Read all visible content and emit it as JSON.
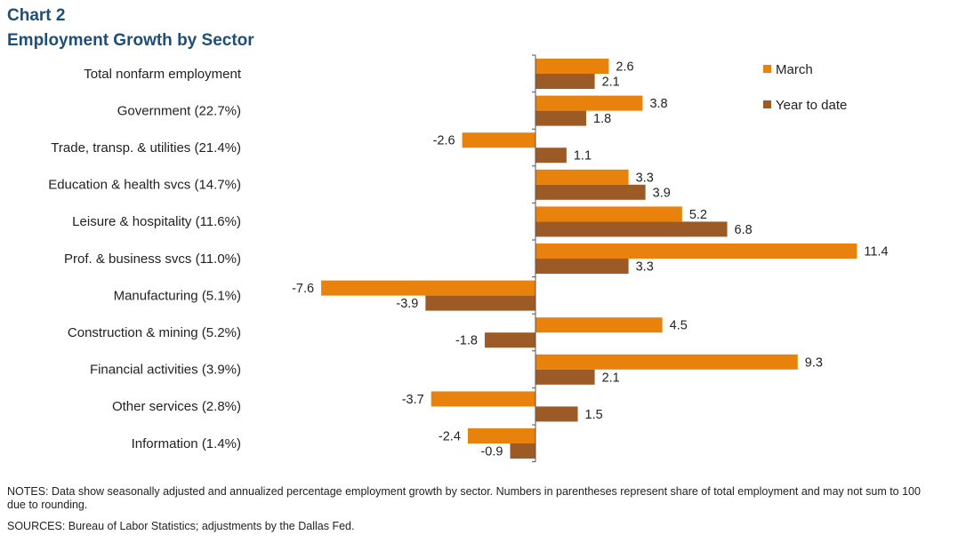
{
  "title": "Chart 2",
  "subtitle": "Employment  Growth by Sector",
  "notes": "NOTES:  Data show seasonally adjusted and annualized percentage employment  growth by sector. Numbers in parentheses represent share of total employment and may not sum to 100 due to rounding.",
  "sources": "SOURCES:  Bureau of Labor Statistics; adjustments by the Dallas Fed.",
  "colors": {
    "march": "#e8820c",
    "ytd": "#9c5a27"
  },
  "chart_data": {
    "type": "bar",
    "orientation": "horizontal",
    "categories": [
      "Total nonfarm employment",
      "Government (22.7%)",
      "Trade, transp. & utilities (21.4%)",
      "Education & health svcs (14.7%)",
      "Leisure & hospitality (11.6%)",
      "Prof. & business svcs (11.0%)",
      "Manufacturing (5.1%)",
      "Construction & mining (5.2%)",
      "Financial activities (3.9%)",
      "Other services (2.8%)",
      "Information (1.4%)"
    ],
    "series": [
      {
        "name": "March",
        "values": [
          2.6,
          3.8,
          -2.6,
          3.3,
          5.2,
          11.4,
          -7.6,
          4.5,
          9.3,
          -3.7,
          -2.4
        ]
      },
      {
        "name": "Year to date",
        "values": [
          2.1,
          1.8,
          1.1,
          3.9,
          6.8,
          3.3,
          -3.9,
          -1.8,
          2.1,
          1.5,
          -0.9
        ]
      }
    ],
    "value_labels": [
      [
        "2.6",
        "3.8",
        "-2.6",
        "3.3",
        "5.2",
        "11.4",
        "-7.6",
        "4.5",
        "9.3",
        "-3.7",
        "-2.4"
      ],
      [
        "2.1",
        "1.8",
        "1.1",
        "3.9",
        "6.8",
        "3.3",
        "-3.9",
        "-1.8",
        "2.1",
        "1.5",
        "-0.9"
      ]
    ],
    "xlim": [
      -7.6,
      11.4
    ],
    "grid": false,
    "legend": "top-right",
    "xlabel": "",
    "ylabel": ""
  }
}
